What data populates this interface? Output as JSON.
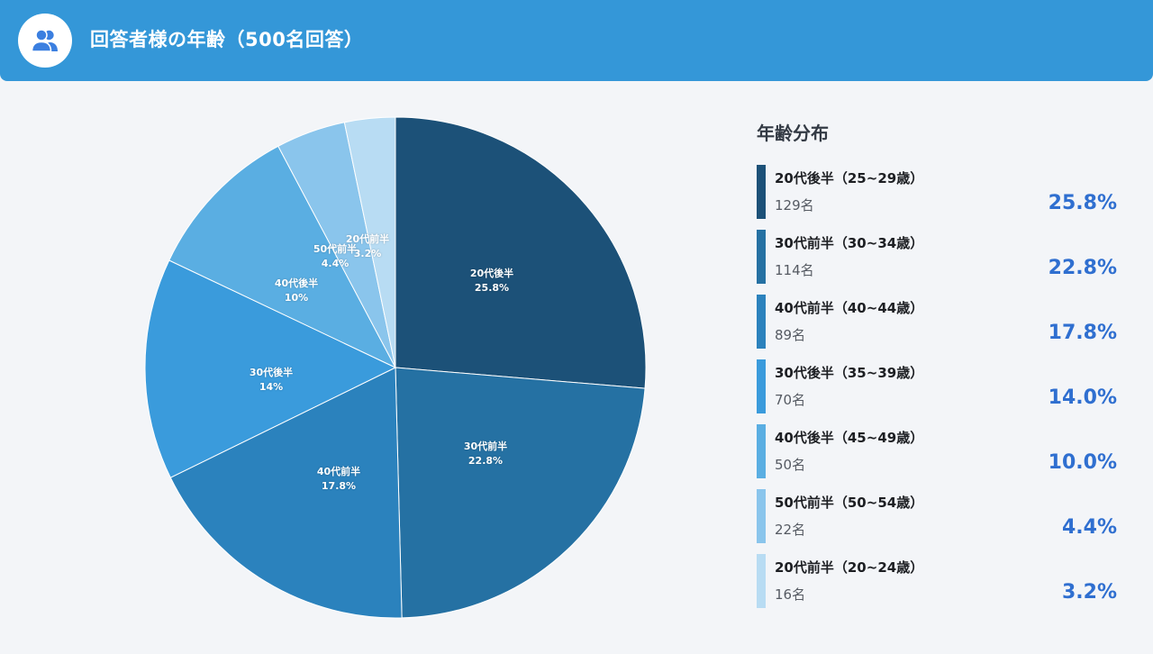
{
  "header": {
    "title": "回答者様の年齢（500名回答）",
    "icon": "users-icon",
    "bg_color": "#3497d8"
  },
  "legend": {
    "title": "年齢分布",
    "items": [
      {
        "label": "20代後半（25~29歳）",
        "count": "129名",
        "percent": "25.8%",
        "color": "#1c5178"
      },
      {
        "label": "30代前半（30~34歳）",
        "count": "114名",
        "percent": "22.8%",
        "color": "#2571a3"
      },
      {
        "label": "40代前半（40~44歳）",
        "count": "89名",
        "percent": "17.8%",
        "color": "#2b82bd"
      },
      {
        "label": "30代後半（35~39歳）",
        "count": "70名",
        "percent": "14.0%",
        "color": "#3a9bdc"
      },
      {
        "label": "40代後半（45~49歳）",
        "count": "50名",
        "percent": "10.0%",
        "color": "#5aaee2"
      },
      {
        "label": "50代前半（50~54歳）",
        "count": "22名",
        "percent": "4.4%",
        "color": "#8ac5ec"
      },
      {
        "label": "20代前半（20~24歳）",
        "count": "16名",
        "percent": "3.2%",
        "color": "#b8dcf3"
      }
    ]
  },
  "pie_labels": [
    {
      "name": "20代後半",
      "value": "25.8%"
    },
    {
      "name": "30代前半",
      "value": "22.8%"
    },
    {
      "name": "40代前半",
      "value": "17.8%"
    },
    {
      "name": "30代後半",
      "value": "14%"
    },
    {
      "name": "40代後半",
      "value": "10%"
    },
    {
      "name": "50代前半",
      "value": "4.4%"
    },
    {
      "name": "20代前半",
      "value": "3.2%"
    }
  ],
  "chart_data": {
    "type": "pie",
    "title": "回答者様の年齢（500名回答）",
    "categories": [
      "20代後半",
      "30代前半",
      "40代前半",
      "30代後半",
      "40代後半",
      "50代前半",
      "20代前半"
    ],
    "values": [
      25.8,
      22.8,
      17.8,
      14.0,
      10.0,
      4.4,
      3.2
    ],
    "counts": [
      129,
      114,
      89,
      70,
      50,
      22,
      16
    ],
    "colors": [
      "#1c5178",
      "#2571a3",
      "#2b82bd",
      "#3a9bdc",
      "#5aaee2",
      "#8ac5ec",
      "#b8dcf3"
    ],
    "total": 500,
    "start_angle": "12 o'clock, clockwise",
    "legend_position": "right",
    "legend_title": "年齢分布"
  }
}
